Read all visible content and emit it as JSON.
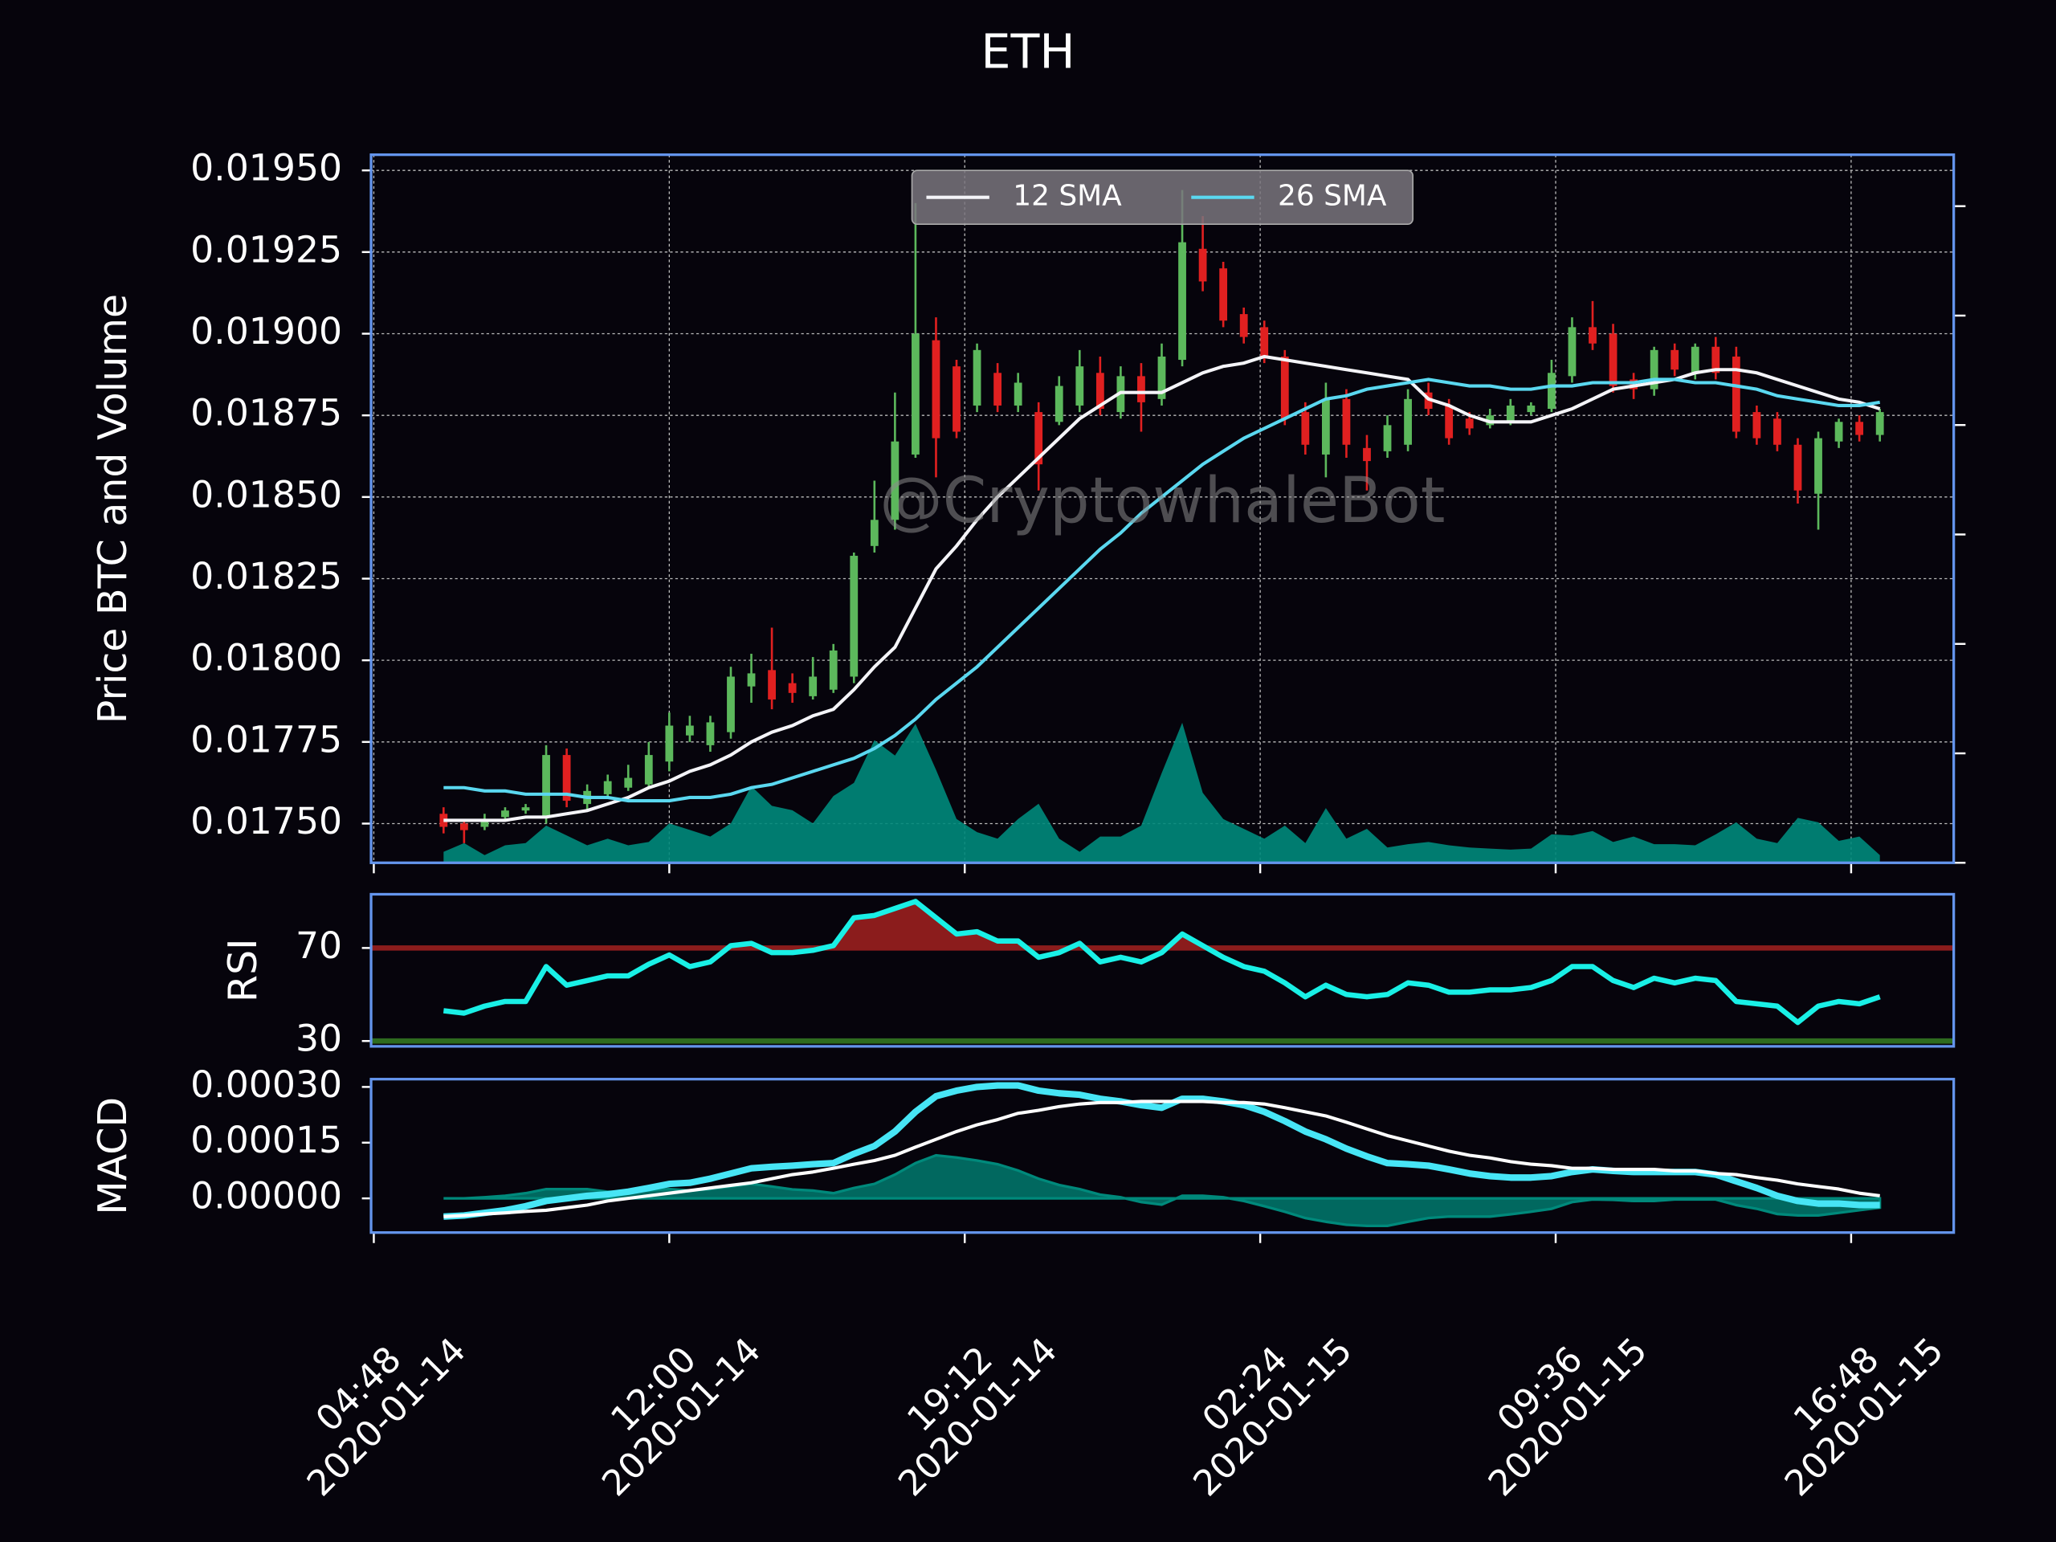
{
  "chart_data": [
    {
      "type": "candlestick",
      "title": "ETH",
      "ylabel": "Price BTC and Volume",
      "watermark": "@CryptowhaleBot",
      "x": [
        "2020-01-14 06:30",
        "2020-01-14 07:00",
        "2020-01-14 07:30",
        "2020-01-14 08:00",
        "2020-01-14 08:30",
        "2020-01-14 09:00",
        "2020-01-14 09:30",
        "2020-01-14 10:00",
        "2020-01-14 10:30",
        "2020-01-14 11:00",
        "2020-01-14 11:30",
        "2020-01-14 12:00",
        "2020-01-14 12:30",
        "2020-01-14 13:00",
        "2020-01-14 13:30",
        "2020-01-14 14:00",
        "2020-01-14 14:30",
        "2020-01-14 15:00",
        "2020-01-14 15:30",
        "2020-01-14 16:00",
        "2020-01-14 16:30",
        "2020-01-14 17:00",
        "2020-01-14 17:30",
        "2020-01-14 18:00",
        "2020-01-14 18:30",
        "2020-01-14 19:00",
        "2020-01-14 19:30",
        "2020-01-14 20:00",
        "2020-01-14 20:30",
        "2020-01-14 21:00",
        "2020-01-14 21:30",
        "2020-01-14 22:00",
        "2020-01-14 22:30",
        "2020-01-14 23:00",
        "2020-01-14 23:30",
        "2020-01-15 00:00",
        "2020-01-15 00:30",
        "2020-01-15 01:00",
        "2020-01-15 01:30",
        "2020-01-15 02:00",
        "2020-01-15 02:30",
        "2020-01-15 03:00",
        "2020-01-15 03:30",
        "2020-01-15 04:00",
        "2020-01-15 04:30",
        "2020-01-15 05:00",
        "2020-01-15 05:30",
        "2020-01-15 06:00",
        "2020-01-15 06:30",
        "2020-01-15 07:00",
        "2020-01-15 07:30",
        "2020-01-15 08:00",
        "2020-01-15 08:30",
        "2020-01-15 09:00",
        "2020-01-15 09:30",
        "2020-01-15 10:00",
        "2020-01-15 10:30",
        "2020-01-15 11:00",
        "2020-01-15 11:30",
        "2020-01-15 12:00",
        "2020-01-15 12:30",
        "2020-01-15 13:00",
        "2020-01-15 13:30",
        "2020-01-15 14:00",
        "2020-01-15 14:30",
        "2020-01-15 15:00",
        "2020-01-15 15:30",
        "2020-01-15 16:00",
        "2020-01-15 16:30",
        "2020-01-15 17:00",
        "2020-01-15 17:30"
      ],
      "open": [
        0.01753,
        0.0175,
        0.01749,
        0.01752,
        0.01754,
        0.01752,
        0.01771,
        0.01756,
        0.01759,
        0.01761,
        0.01762,
        0.01769,
        0.01777,
        0.01774,
        0.01778,
        0.01792,
        0.01797,
        0.01793,
        0.01789,
        0.01791,
        0.01795,
        0.01835,
        0.01843,
        0.01863,
        0.01898,
        0.0189,
        0.01878,
        0.01888,
        0.01878,
        0.01876,
        0.01873,
        0.01878,
        0.01888,
        0.01876,
        0.01887,
        0.0188,
        0.01892,
        0.01926,
        0.0192,
        0.01906,
        0.01902,
        0.01893,
        0.01876,
        0.01863,
        0.0188,
        0.01865,
        0.01864,
        0.01866,
        0.01882,
        0.01878,
        0.01874,
        0.01872,
        0.01873,
        0.01876,
        0.01877,
        0.01887,
        0.01902,
        0.019,
        0.01886,
        0.01883,
        0.01895,
        0.01888,
        0.01896,
        0.01893,
        0.01876,
        0.01874,
        0.01866,
        0.01851,
        0.01867,
        0.01873,
        0.01869
      ],
      "high": [
        0.01755,
        0.01751,
        0.01753,
        0.01755,
        0.01756,
        0.01774,
        0.01773,
        0.01762,
        0.01765,
        0.01768,
        0.01775,
        0.01784,
        0.01783,
        0.01783,
        0.01798,
        0.01802,
        0.0181,
        0.01796,
        0.01801,
        0.01805,
        0.01833,
        0.01855,
        0.01882,
        0.0194,
        0.01905,
        0.01892,
        0.01897,
        0.01891,
        0.01888,
        0.01879,
        0.01887,
        0.01895,
        0.01893,
        0.0189,
        0.01891,
        0.01897,
        0.01944,
        0.01936,
        0.01922,
        0.01908,
        0.01904,
        0.01895,
        0.01879,
        0.01885,
        0.01883,
        0.01869,
        0.01875,
        0.01883,
        0.01885,
        0.0188,
        0.01876,
        0.01877,
        0.0188,
        0.01879,
        0.01892,
        0.01905,
        0.0191,
        0.01903,
        0.01888,
        0.01896,
        0.01897,
        0.01897,
        0.01899,
        0.01896,
        0.01878,
        0.01876,
        0.01868,
        0.0187,
        0.01874,
        0.01875,
        0.01877
      ],
      "low": [
        0.01747,
        0.01744,
        0.01748,
        0.01751,
        0.01753,
        0.0175,
        0.01755,
        0.01754,
        0.01758,
        0.0176,
        0.01761,
        0.01766,
        0.01775,
        0.01772,
        0.01776,
        0.01787,
        0.01785,
        0.01787,
        0.01788,
        0.0179,
        0.01793,
        0.01833,
        0.0184,
        0.01862,
        0.01856,
        0.01868,
        0.01876,
        0.01876,
        0.01876,
        0.01852,
        0.01872,
        0.01876,
        0.01875,
        0.01874,
        0.0187,
        0.01878,
        0.0189,
        0.01913,
        0.01902,
        0.01897,
        0.01891,
        0.01872,
        0.01863,
        0.01856,
        0.01862,
        0.01852,
        0.01862,
        0.01864,
        0.01875,
        0.01866,
        0.01869,
        0.01871,
        0.01872,
        0.01875,
        0.01876,
        0.01885,
        0.01895,
        0.01882,
        0.0188,
        0.01881,
        0.01887,
        0.01886,
        0.01886,
        0.01868,
        0.01866,
        0.01864,
        0.01848,
        0.0184,
        0.01865,
        0.01867,
        0.01867
      ],
      "close": [
        0.01749,
        0.01748,
        0.01751,
        0.01754,
        0.01755,
        0.01771,
        0.01757,
        0.0176,
        0.01763,
        0.01764,
        0.01771,
        0.0178,
        0.0178,
        0.01781,
        0.01795,
        0.01796,
        0.01788,
        0.0179,
        0.01795,
        0.01803,
        0.01832,
        0.01843,
        0.01867,
        0.019,
        0.01868,
        0.0187,
        0.01895,
        0.01878,
        0.01885,
        0.0186,
        0.01884,
        0.0189,
        0.01877,
        0.01887,
        0.01879,
        0.01893,
        0.01928,
        0.01916,
        0.01904,
        0.01899,
        0.01893,
        0.01874,
        0.01866,
        0.0188,
        0.01866,
        0.01861,
        0.01872,
        0.0188,
        0.01877,
        0.01868,
        0.01871,
        0.01875,
        0.01878,
        0.01878,
        0.01888,
        0.01902,
        0.01897,
        0.01884,
        0.01883,
        0.01895,
        0.01889,
        0.01896,
        0.01888,
        0.0187,
        0.01868,
        0.01866,
        0.01852,
        0.01868,
        0.01873,
        0.01869,
        0.01876
      ],
      "up_color": "#5cb85c",
      "down_color": "#e02020",
      "volume": {
        "axis": "y2",
        "color": "#00897b",
        "values": [
          0.1,
          0.18,
          0.07,
          0.16,
          0.18,
          0.34,
          0.25,
          0.16,
          0.22,
          0.16,
          0.19,
          0.36,
          0.3,
          0.24,
          0.36,
          0.7,
          0.52,
          0.48,
          0.36,
          0.61,
          0.73,
          1.12,
          0.98,
          1.27,
          0.85,
          0.4,
          0.28,
          0.22,
          0.4,
          0.54,
          0.22,
          0.1,
          0.24,
          0.24,
          0.34,
          0.82,
          1.28,
          0.64,
          0.4,
          0.31,
          0.22,
          0.34,
          0.18,
          0.5,
          0.22,
          0.31,
          0.14,
          0.17,
          0.19,
          0.16,
          0.14,
          0.13,
          0.12,
          0.13,
          0.26,
          0.25,
          0.29,
          0.19,
          0.24,
          0.17,
          0.17,
          0.16,
          0.26,
          0.37,
          0.22,
          0.18,
          0.41,
          0.37,
          0.2,
          0.24,
          0.07
        ]
      },
      "series": [
        {
          "name": "12 SMA",
          "color": "#f4f4f8",
          "values": [
            0.01751,
            0.01751,
            0.01751,
            0.01751,
            0.01752,
            0.01752,
            0.01753,
            0.01754,
            0.01756,
            0.01758,
            0.01761,
            0.01763,
            0.01766,
            0.01768,
            0.01771,
            0.01775,
            0.01778,
            0.0178,
            0.01783,
            0.01785,
            0.01791,
            0.01798,
            0.01804,
            0.01816,
            0.01828,
            0.01835,
            0.01843,
            0.0185,
            0.01856,
            0.01862,
            0.01868,
            0.01874,
            0.01878,
            0.01882,
            0.01882,
            0.01882,
            0.01885,
            0.01888,
            0.0189,
            0.01891,
            0.01893,
            0.01892,
            0.01891,
            0.0189,
            0.01889,
            0.01888,
            0.01887,
            0.01886,
            0.0188,
            0.01878,
            0.01875,
            0.01873,
            0.01873,
            0.01873,
            0.01875,
            0.01877,
            0.0188,
            0.01883,
            0.01884,
            0.01885,
            0.01886,
            0.01888,
            0.01889,
            0.01889,
            0.01888,
            0.01886,
            0.01884,
            0.01882,
            0.0188,
            0.01879,
            0.01877
          ]
        },
        {
          "name": "26 SMA",
          "color": "#5ad8f0",
          "values": [
            0.01761,
            0.01761,
            0.0176,
            0.0176,
            0.01759,
            0.01759,
            0.01759,
            0.01758,
            0.01758,
            0.01757,
            0.01757,
            0.01757,
            0.01758,
            0.01758,
            0.01759,
            0.01761,
            0.01762,
            0.01764,
            0.01766,
            0.01768,
            0.0177,
            0.01773,
            0.01777,
            0.01782,
            0.01788,
            0.01793,
            0.01798,
            0.01804,
            0.0181,
            0.01816,
            0.01822,
            0.01828,
            0.01834,
            0.01839,
            0.01845,
            0.0185,
            0.01855,
            0.0186,
            0.01864,
            0.01868,
            0.01871,
            0.01874,
            0.01877,
            0.0188,
            0.01881,
            0.01883,
            0.01884,
            0.01885,
            0.01886,
            0.01885,
            0.01884,
            0.01884,
            0.01883,
            0.01883,
            0.01884,
            0.01884,
            0.01885,
            0.01885,
            0.01885,
            0.01886,
            0.01886,
            0.01885,
            0.01885,
            0.01884,
            0.01883,
            0.01881,
            0.0188,
            0.01879,
            0.01878,
            0.01878,
            0.01879
          ]
        }
      ],
      "legend": "upper center",
      "grid": true,
      "xlim": [
        "2020-01-14 04:44",
        "2020-01-15 19:18"
      ],
      "xticks": [
        {
          "value": "2020-01-14 04:48",
          "label": "04:48\n2020-01-14"
        },
        {
          "value": "2020-01-14 12:00",
          "label": "12:00\n2020-01-14"
        },
        {
          "value": "2020-01-14 19:12",
          "label": "19:12\n2020-01-14"
        },
        {
          "value": "2020-01-15 02:24",
          "label": "02:24\n2020-01-15"
        },
        {
          "value": "2020-01-15 09:36",
          "label": "09:36\n2020-01-15"
        },
        {
          "value": "2020-01-15 16:48",
          "label": "16:48\n2020-01-15"
        }
      ],
      "ylim": [
        0.01738,
        0.019548
      ],
      "yticks": [
        {
          "value": 0.0175,
          "label": "0.01750"
        },
        0.01775,
        {
          "value": 0.018,
          "label": "0.01800"
        },
        0.01825,
        {
          "value": 0.0185,
          "label": "0.01850"
        },
        0.01875,
        {
          "value": 0.019,
          "label": "0.01900"
        },
        0.01925,
        {
          "value": 0.0195,
          "label": "0.01950"
        }
      ],
      "y2lim": [
        0,
        6.47
      ],
      "y2ticks": [
        0,
        1,
        2,
        3,
        4,
        5,
        6
      ]
    },
    {
      "type": "line",
      "ylabel": "RSI",
      "ylim": [
        27.7,
        93.1
      ],
      "yticks": [
        30,
        70
      ],
      "upper": {
        "value": 70,
        "color": "#8b1c1c"
      },
      "lower": {
        "value": 30,
        "color": "#2e6b1f"
      },
      "series": [
        {
          "color": "#19f0e6",
          "values": [
            43,
            42,
            45,
            47,
            47,
            62,
            54,
            56,
            58,
            58,
            63,
            67,
            62,
            64,
            71,
            72,
            68,
            68,
            69,
            71,
            83,
            84,
            87,
            90,
            83,
            76,
            77,
            73,
            73,
            66,
            68,
            72,
            64,
            66,
            64,
            68,
            76,
            71,
            66,
            62,
            60,
            55,
            49,
            54,
            50,
            49,
            50,
            55,
            54,
            51,
            51,
            52,
            52,
            53,
            56,
            62,
            62,
            56,
            53,
            57,
            55,
            57,
            56,
            47,
            46,
            45,
            38,
            45,
            47,
            46,
            49
          ]
        }
      ]
    },
    {
      "type": "line",
      "ylabel": "MACD",
      "ylim": [
        -9.2e-05,
        0.000321
      ],
      "yticks": [
        {
          "value": 0,
          "label": "0.00000"
        },
        {
          "value": 0.00015,
          "label": "0.00015"
        },
        {
          "value": 0.0003,
          "label": "0.00030"
        }
      ],
      "histogram": {
        "color": "#00897b",
        "values": [
          0,
          0,
          3e-06,
          7e-06,
          1.4e-05,
          2.5e-05,
          2.5e-05,
          2.5e-05,
          1.8e-05,
          1.8e-05,
          2.1e-05,
          2.5e-05,
          2.1e-05,
          2.5e-05,
          3.2e-05,
          3.9e-05,
          3.2e-05,
          2.4e-05,
          2.1e-05,
          1.4e-05,
          2.8e-05,
          3.9e-05,
          6.4e-05,
          9.5e-05,
          0.000116,
          0.00011,
          0.000102,
          9.2e-05,
          7.5e-05,
          5.3e-05,
          3.6e-05,
          2.5e-05,
          1e-05,
          3e-06,
          -1e-05,
          -1.7e-05,
          7e-06,
          7e-06,
          3e-06,
          -7e-06,
          -2.1e-05,
          -3.6e-05,
          -5.3e-05,
          -6.3e-05,
          -7.1e-05,
          -7.4e-05,
          -7.4e-05,
          -6.3e-05,
          -5.3e-05,
          -4.9e-05,
          -4.9e-05,
          -4.9e-05,
          -4.3e-05,
          -3.6e-05,
          -2.8e-05,
          -1e-05,
          -3e-06,
          -4e-06,
          -7e-06,
          -7e-06,
          -3e-06,
          -3e-06,
          -3e-06,
          -1.8e-05,
          -2.8e-05,
          -4.2e-05,
          -4.6e-05,
          -4.6e-05,
          -3.9e-05,
          -3.2e-05,
          -2.5e-05
        ]
      },
      "series": [
        {
          "color": "#47e5f5",
          "values": [
            -4.9e-05,
            -4.6e-05,
            -3.9e-05,
            -3.2e-05,
            -2.1e-05,
            -7e-06,
            0,
            7e-06,
            1.1e-05,
            1.8e-05,
            2.8e-05,
            3.9e-05,
            4.2e-05,
            5.3e-05,
            6.7e-05,
            8.1e-05,
            8.5e-05,
            8.8e-05,
            9.2e-05,
            9.5e-05,
            0.00012,
            0.000141,
            0.00018,
            0.000233,
            0.000275,
            0.00029,
            0.0003,
            0.000304,
            0.000304,
            0.00029,
            0.000283,
            0.000279,
            0.000268,
            0.000261,
            0.000251,
            0.000244,
            0.000268,
            0.000268,
            0.000261,
            0.000251,
            0.000233,
            0.000208,
            0.00018,
            0.000159,
            0.000134,
            0.000113,
            9.5e-05,
            9.2e-05,
            8.8e-05,
            7.8e-05,
            6.7e-05,
            6e-05,
            5.6e-05,
            5.6e-05,
            6e-05,
            7.1e-05,
            7.8e-05,
            7.4e-05,
            7.1e-05,
            7.1e-05,
            7.1e-05,
            7.1e-05,
            6.4e-05,
            4.6e-05,
            2.8e-05,
            7e-06,
            -7e-06,
            -1.4e-05,
            -1.4e-05,
            -1.8e-05,
            -1.8e-05
          ]
        },
        {
          "color": "#ffffff",
          "values": [
            -4.9e-05,
            -4.6e-05,
            -4.2e-05,
            -3.9e-05,
            -3.5e-05,
            -3.2e-05,
            -2.5e-05,
            -1.8e-05,
            -7e-06,
            0,
            7e-06,
            1.4e-05,
            2.1e-05,
            2.8e-05,
            3.5e-05,
            4.2e-05,
            5.3e-05,
            6.4e-05,
            7.1e-05,
            8.1e-05,
            9.2e-05,
            0.000102,
            0.000116,
            0.000138,
            0.000159,
            0.00018,
            0.000198,
            0.000212,
            0.000229,
            0.000237,
            0.000247,
            0.000254,
            0.000258,
            0.000258,
            0.000261,
            0.000261,
            0.000261,
            0.000261,
            0.000258,
            0.000258,
            0.000254,
            0.000244,
            0.000233,
            0.000222,
            0.000205,
            0.000187,
            0.000169,
            0.000155,
            0.000141,
            0.000127,
            0.000116,
            0.000109,
            9.9e-05,
            9.2e-05,
            8.8e-05,
            8.1e-05,
            8.1e-05,
            7.8e-05,
            7.8e-05,
            7.8e-05,
            7.4e-05,
            7.4e-05,
            6.7e-05,
            6.4e-05,
            5.6e-05,
            4.9e-05,
            3.9e-05,
            3.2e-05,
            2.5e-05,
            1.4e-05,
            7e-06
          ]
        }
      ]
    }
  ]
}
